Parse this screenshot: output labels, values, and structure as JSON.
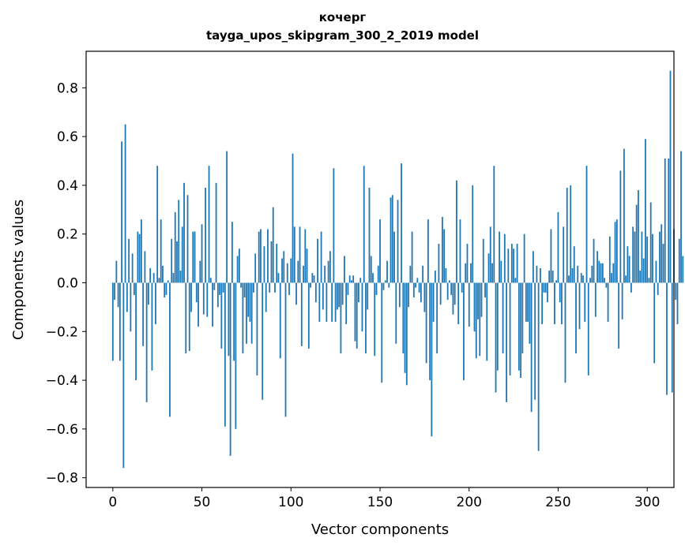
{
  "chart_data": {
    "type": "bar",
    "title": "кочерг",
    "subtitle": "tayga_upos_skipgram_300_2_2019 model",
    "xlabel": "Vector components",
    "ylabel": "Components values",
    "xlim": [
      -15,
      315
    ],
    "ylim": [
      -0.84,
      0.95
    ],
    "xticks": [
      0,
      50,
      100,
      150,
      200,
      250,
      300
    ],
    "yticks": [
      -0.8,
      -0.6,
      -0.4,
      -0.2,
      0.0,
      0.2,
      0.4,
      0.6,
      0.8
    ],
    "ytick_labels": [
      "−0.8",
      "−0.6",
      "−0.4",
      "−0.2",
      "0.0",
      "0.2",
      "0.4",
      "0.6",
      "0.8"
    ],
    "bar_color": "#1f77b4",
    "values": [
      -0.32,
      -0.07,
      0.09,
      -0.1,
      -0.32,
      0.58,
      -0.76,
      0.65,
      -0.12,
      0.18,
      -0.2,
      0.12,
      -0.05,
      -0.4,
      0.21,
      0.2,
      0.26,
      -0.26,
      0.13,
      -0.49,
      -0.09,
      0.06,
      -0.36,
      0.04,
      -0.17,
      0.48,
      0.02,
      0.26,
      0.07,
      -0.06,
      -0.05,
      0.01,
      -0.55,
      0.18,
      0.04,
      0.29,
      0.17,
      0.34,
      0.05,
      0.23,
      0.41,
      -0.29,
      0.36,
      -0.28,
      -0.12,
      0.21,
      0.21,
      -0.08,
      -0.18,
      0.09,
      0.24,
      -0.13,
      0.39,
      -0.14,
      0.48,
      0.02,
      -0.18,
      -0.03,
      0.41,
      -0.1,
      -0.05,
      -0.27,
      -0.04,
      -0.59,
      0.54,
      -0.3,
      -0.71,
      0.25,
      -0.32,
      -0.6,
      0.11,
      0.14,
      -0.02,
      -0.29,
      -0.06,
      -0.25,
      -0.14,
      -0.16,
      -0.25,
      -0.04,
      0.12,
      -0.38,
      0.21,
      0.22,
      -0.48,
      0.15,
      -0.12,
      0.22,
      -0.04,
      0.17,
      0.31,
      -0.04,
      0.16,
      0.04,
      -0.31,
      0.1,
      0.13,
      -0.55,
      0.08,
      -0.05,
      0.1,
      0.53,
      0.23,
      -0.09,
      0.09,
      0.23,
      -0.26,
      0.07,
      0.22,
      0.14,
      -0.27,
      -0.02,
      0.04,
      0.03,
      -0.08,
      0.18,
      -0.16,
      0.21,
      -0.11,
      0.07,
      -0.16,
      0.09,
      0.13,
      -0.16,
      0.47,
      -0.16,
      -0.11,
      -0.1,
      -0.29,
      -0.09,
      0.11,
      -0.17,
      -0.05,
      0.03,
      0.01,
      0.03,
      -0.24,
      -0.27,
      -0.08,
      0.02,
      -0.2,
      0.48,
      -0.29,
      -0.11,
      0.39,
      0.11,
      0.04,
      -0.3,
      -0.05,
      0.07,
      0.26,
      -0.41,
      -0.03,
      0.01,
      0.09,
      -0.02,
      0.35,
      0.36,
      0.21,
      -0.25,
      0.34,
      -0.1,
      0.49,
      -0.29,
      -0.37,
      -0.42,
      -0.1,
      0.07,
      0.21,
      -0.06,
      -0.02,
      0.02,
      -0.04,
      -0.08,
      0.07,
      -0.12,
      -0.33,
      0.26,
      -0.4,
      -0.63,
      -0.16,
      0.05,
      -0.29,
      0.16,
      -0.09,
      0.27,
      0.22,
      0.06,
      -0.07,
      0.01,
      -0.05,
      -0.13,
      -0.09,
      0.42,
      -0.17,
      0.26,
      -0.04,
      -0.4,
      0.08,
      0.16,
      -0.18,
      0.08,
      0.4,
      -0.2,
      -0.31,
      -0.15,
      -0.3,
      -0.14,
      0.18,
      -0.06,
      -0.32,
      0.12,
      0.23,
      0.08,
      0.48,
      -0.45,
      -0.36,
      0.21,
      0.09,
      -0.29,
      0.2,
      -0.49,
      0.14,
      -0.38,
      0.16,
      0.14,
      0.02,
      0.16,
      -0.36,
      -0.39,
      -0.29,
      0.2,
      -0.16,
      -0.16,
      -0.25,
      -0.53,
      0.13,
      -0.48,
      0.07,
      -0.69,
      0.06,
      -0.17,
      -0.04,
      -0.04,
      -0.08,
      0.05,
      0.22,
      0.05,
      -0.17,
      0.01,
      0.29,
      -0.08,
      -0.17,
      0.23,
      -0.41,
      0.39,
      0.03,
      0.4,
      0.06,
      0.15,
      -0.29,
      0.07,
      -0.19,
      0.04,
      0.03,
      -0.16,
      0.48,
      -0.38,
      0.02,
      0.07,
      0.18,
      -0.14,
      0.13,
      0.09,
      0.08,
      0.08,
      0.02,
      -0.02,
      -0.16,
      0.19,
      0.04,
      0.08,
      0.25,
      0.26,
      -0.27,
      0.46,
      -0.15,
      0.55,
      0.03,
      0.15,
      0.11,
      -0.04,
      0.23,
      0.21,
      0.32,
      0.38,
      0.05,
      0.21,
      0.1,
      0.59,
      0.19,
      0.02,
      0.33,
      0.2,
      -0.33,
      0.09,
      -0.05,
      0.21,
      0.24,
      0.16,
      0.51,
      -0.46,
      0.51,
      0.87,
      -0.45,
      0.22,
      -0.07,
      -0.17,
      0.18,
      0.54,
      0.11
    ]
  }
}
